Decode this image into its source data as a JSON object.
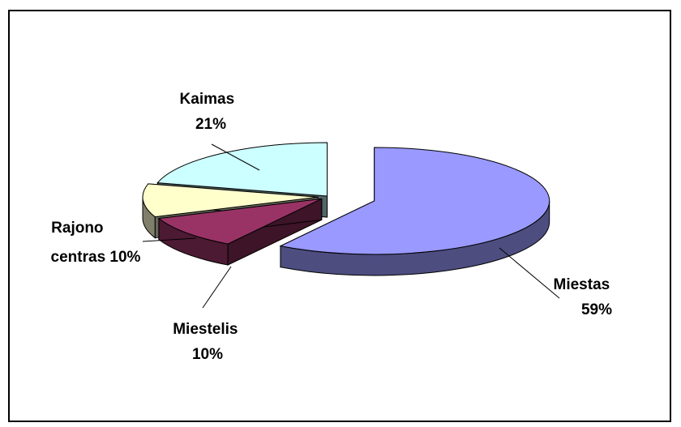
{
  "chart_data": {
    "type": "pie",
    "style": "3d-exploded",
    "title": "",
    "slices": [
      {
        "label_lines": [
          "Miestas",
          "59%"
        ],
        "value": 59,
        "top_color": "#9999ff",
        "side_color": "#4d4d80",
        "side_dark": "#3b3b66"
      },
      {
        "label_lines": [
          "Miestelis",
          "10%"
        ],
        "value": 10,
        "top_color": "#993366",
        "side_color": "#4d1a33",
        "side_dark": "#3d1428"
      },
      {
        "label_lines": [
          "Rajono",
          "centras 10%"
        ],
        "value": 10,
        "top_color": "#ffffcc",
        "side_color": "#80806a",
        "side_dark": "#66665a"
      },
      {
        "label_lines": [
          "Kaimas",
          "21%"
        ],
        "value": 21,
        "top_color": "#ccffff",
        "side_color": "#668080",
        "side_dark": "#526666"
      }
    ]
  }
}
